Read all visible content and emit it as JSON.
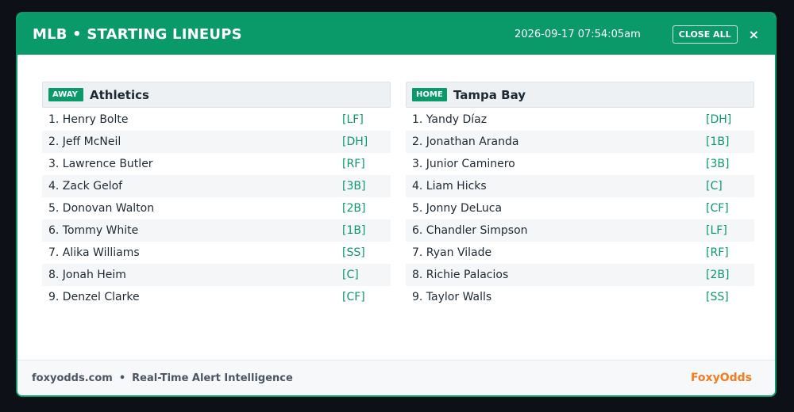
{
  "header": {
    "title": "MLB • STARTING LINEUPS",
    "timestamp": "2026-09-17 07:54:05am",
    "close_all_label": "CLOSE ALL",
    "close_glyph": "×"
  },
  "away": {
    "badge": "AWAY",
    "team": "Athletics",
    "lineup": [
      {
        "player": "1. Henry Bolte",
        "pos": "[LF]"
      },
      {
        "player": "2. Jeff McNeil",
        "pos": "[DH]"
      },
      {
        "player": "3. Lawrence Butler",
        "pos": "[RF]"
      },
      {
        "player": "4. Zack Gelof",
        "pos": "[3B]"
      },
      {
        "player": "5. Donovan Walton",
        "pos": "[2B]"
      },
      {
        "player": "6. Tommy White",
        "pos": "[1B]"
      },
      {
        "player": "7. Alika Williams",
        "pos": "[SS]"
      },
      {
        "player": "8. Jonah Heim",
        "pos": "[C]"
      },
      {
        "player": "9. Denzel Clarke",
        "pos": "[CF]"
      }
    ]
  },
  "home": {
    "badge": "HOME",
    "team": "Tampa Bay",
    "lineup": [
      {
        "player": "1. Yandy Díaz",
        "pos": "[DH]"
      },
      {
        "player": "2. Jonathan Aranda",
        "pos": "[1B]"
      },
      {
        "player": "3. Junior Caminero",
        "pos": "[3B]"
      },
      {
        "player": "4. Liam Hicks",
        "pos": "[C]"
      },
      {
        "player": "5. Jonny DeLuca",
        "pos": "[CF]"
      },
      {
        "player": "6. Chandler Simpson",
        "pos": "[LF]"
      },
      {
        "player": "7. Ryan Vilade",
        "pos": "[RF]"
      },
      {
        "player": "8. Richie Palacios",
        "pos": "[2B]"
      },
      {
        "player": "9. Taylor Walls",
        "pos": "[SS]"
      }
    ]
  },
  "footer": {
    "site": "foxyodds.com",
    "separator": "•",
    "tagline": "Real-Time Alert Intelligence",
    "brand": "FoxyOdds"
  },
  "colors": {
    "accent": "#0a9a6a",
    "brand": "#f47b20",
    "background": "#0d1117"
  }
}
